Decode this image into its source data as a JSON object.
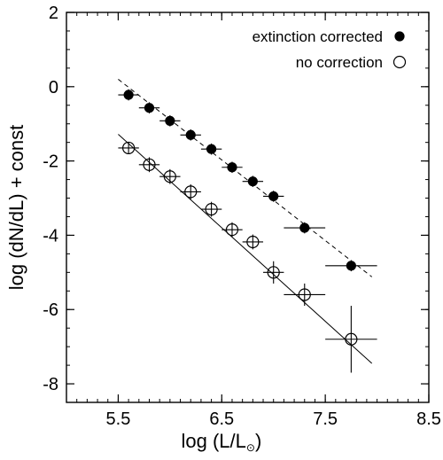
{
  "chart_data": {
    "type": "scatter",
    "xlabel": "log (L/L",
    "xlabel_sub": "⊙",
    "xlabel_close": ")",
    "ylabel": "log (dN/dL) + const",
    "xlim": [
      5.0,
      8.5
    ],
    "ylim": [
      -8.5,
      2.0
    ],
    "xticks": [
      5.5,
      6.5,
      7.5,
      8.5
    ],
    "xtick_labels": [
      "5.5",
      "6.5",
      "7.5",
      "8.5"
    ],
    "yticks": [
      2,
      0,
      -2,
      -4,
      -6,
      -8
    ],
    "ytick_labels": [
      "2",
      "0",
      "-2",
      "-4",
      "-6",
      "-8"
    ],
    "grid": false,
    "legend_position": "top-right",
    "series": [
      {
        "name": "extinction corrected",
        "marker": "filled-circle",
        "x": [
          5.6,
          5.8,
          6.0,
          6.2,
          6.4,
          6.6,
          6.8,
          7.0,
          7.3,
          7.75
        ],
        "y": [
          -0.22,
          -0.57,
          -0.92,
          -1.3,
          -1.68,
          -2.17,
          -2.55,
          -2.95,
          -3.8,
          -4.82
        ],
        "xerr": [
          0.1,
          0.1,
          0.1,
          0.1,
          0.1,
          0.1,
          0.1,
          0.1,
          0.2,
          0.25
        ],
        "yerr": [
          0.15,
          0.15,
          0.15,
          0.15,
          0.15,
          0.15,
          0.15,
          0.15,
          0.15,
          0.15
        ],
        "fit": {
          "x": [
            5.5,
            7.95
          ],
          "y": [
            0.2,
            -5.12
          ],
          "style": "dashed"
        }
      },
      {
        "name": "no correction",
        "marker": "open-circle",
        "x": [
          5.6,
          5.8,
          6.0,
          6.2,
          6.4,
          6.6,
          6.8,
          7.0,
          7.3,
          7.75
        ],
        "y": [
          -1.65,
          -2.1,
          -2.42,
          -2.83,
          -3.3,
          -3.85,
          -4.18,
          -5.0,
          -5.6,
          -6.8
        ],
        "xerr": [
          0.1,
          0.1,
          0.1,
          0.1,
          0.1,
          0.1,
          0.1,
          0.1,
          0.2,
          0.25
        ],
        "yerr": [
          0.15,
          0.2,
          0.2,
          0.2,
          0.2,
          0.2,
          0.2,
          0.3,
          0.3,
          0.9
        ],
        "fit": {
          "x": [
            5.5,
            7.95
          ],
          "y": [
            -1.28,
            -7.45
          ],
          "style": "solid"
        }
      }
    ]
  }
}
